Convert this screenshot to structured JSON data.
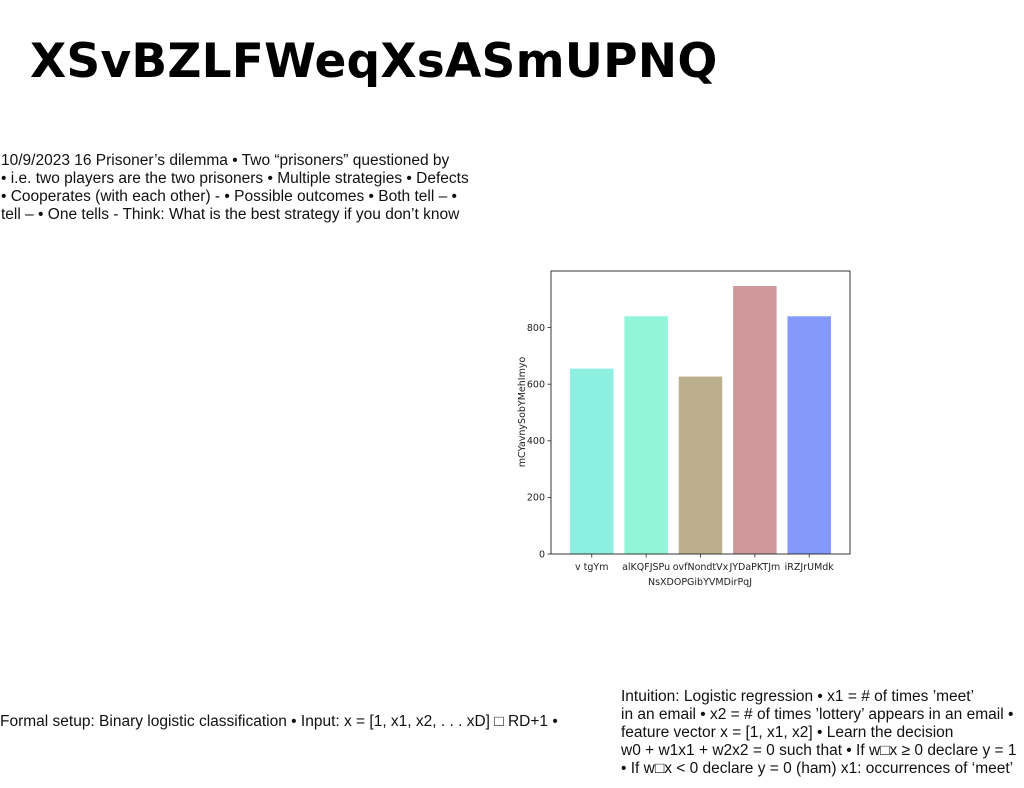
{
  "slide": {
    "title": "XSvBZLFWeqXsASmUPNQ"
  },
  "top_text": {
    "lines": [
      "10/9/2023 16 Prisoner’s dilemma • Two “prisoners” questioned by",
      "• i.e. two players are the two prisoners • Multiple strategies • Defects",
      "• Cooperates (with each other) - • Possible outcomes • Both tell – •",
      "tell – • One tells - Think: What is the best strategy if you don’t know"
    ]
  },
  "bottom_left_text": {
    "lines": [
      "Formal setup: Binary logistic classification • Input: x = [1, x1, x2, . . . xD] □ RD+1 •"
    ]
  },
  "bottom_right_text": {
    "lines": [
      "Intuition: Logistic regression • x1 = # of times ’meet’",
      "in an email • x2 = # of times ’lottery’ appears in an email •",
      "feature vector x = [1, x1, x2] • Learn the decision",
      "w0 + w1x1 + w2x2 = 0 such that • If w□x ≥ 0 declare y = 1",
      "• If w□x < 0 declare y = 0 (ham) x1: occurrences of ‘meet’"
    ]
  },
  "chart_data": {
    "type": "bar",
    "categories": [
      "v tgYm",
      "alKQFJSPu",
      "ovfNondtVx",
      "JYDaPKTJm",
      "iRZJrUMdk"
    ],
    "values": [
      655,
      840,
      627,
      947,
      840
    ],
    "colors": [
      "#8cefe0",
      "#93f5d8",
      "#bcb08c",
      "#cf989a",
      "#8599fa"
    ],
    "xlabel": "NsXDOPGibYVMDirPqJ",
    "ylabel": "mCYavnySobYMehImyo",
    "ylim": [
      0,
      1000
    ],
    "yticks": [
      0,
      200,
      400,
      600,
      800
    ],
    "grid": false,
    "legend": "none"
  }
}
